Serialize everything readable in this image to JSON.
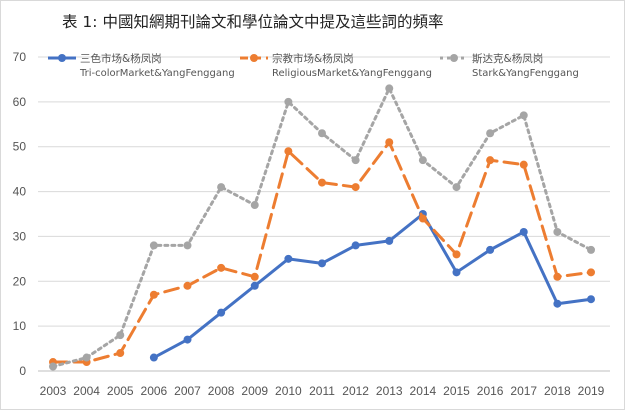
{
  "chart_data": {
    "type": "line",
    "title": "表 1: 中國知網期刊論文和學位論文中提及這些詞的頻率",
    "xlabel": "",
    "ylabel": "",
    "ylim": [
      0,
      70
    ],
    "yticks": [
      0,
      10,
      20,
      30,
      40,
      50,
      60,
      70
    ],
    "categories": [
      "2003",
      "2004",
      "2005",
      "2006",
      "2007",
      "2008",
      "2009",
      "2010",
      "2011",
      "2012",
      "2013",
      "2014",
      "2015",
      "2016",
      "2017",
      "2018",
      "2019"
    ],
    "grid": true,
    "legend_position": "top",
    "series": [
      {
        "name": "三色市场&杨凤岗",
        "name_en": "Tri-colorMarket&YangFenggang",
        "color": "#4472c4",
        "style": "solid",
        "values": [
          null,
          null,
          null,
          3,
          7,
          13,
          19,
          25,
          24,
          28,
          29,
          35,
          22,
          27,
          31,
          15,
          16
        ]
      },
      {
        "name": "宗教市场&杨凤岗",
        "name_en": "ReligiousMarket&YangFenggang",
        "color": "#ed7d31",
        "style": "dashed",
        "values": [
          2,
          2,
          4,
          17,
          19,
          23,
          21,
          49,
          42,
          41,
          51,
          34,
          26,
          47,
          46,
          21,
          22
        ]
      },
      {
        "name": "斯达克&杨凤岗",
        "name_en": "Stark&YangFenggang",
        "color": "#a5a5a5",
        "style": "dotted",
        "values": [
          1,
          3,
          8,
          28,
          28,
          41,
          37,
          60,
          53,
          47,
          63,
          47,
          41,
          53,
          57,
          31,
          27
        ]
      }
    ]
  }
}
